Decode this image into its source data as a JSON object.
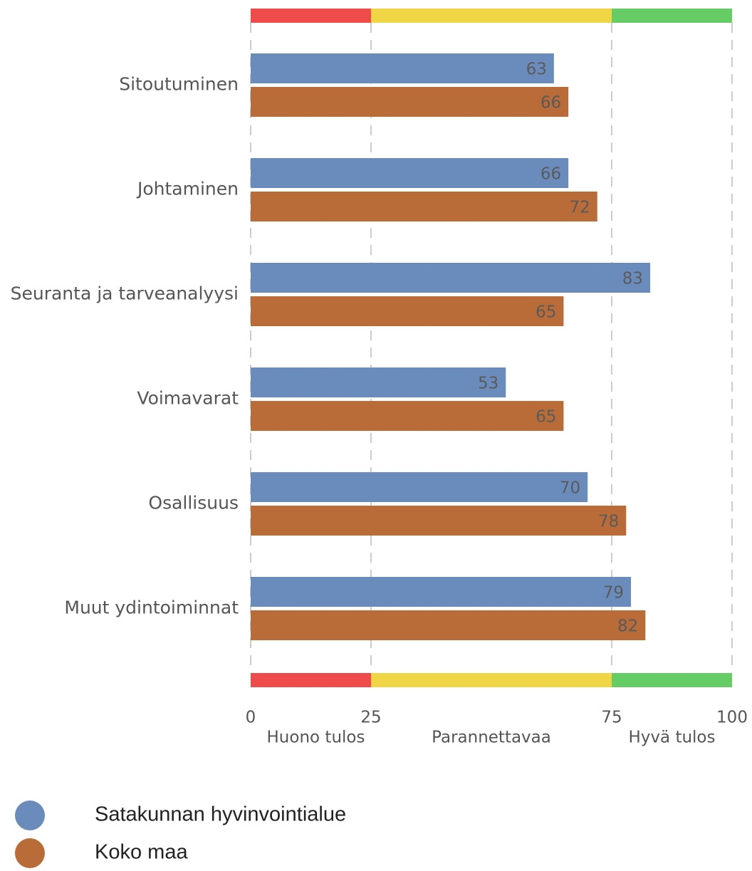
{
  "chart_data": {
    "type": "bar",
    "orientation": "horizontal",
    "categories": [
      "Sitoutuminen",
      "Johtaminen",
      "Seuranta ja tarveanalyysi",
      "Voimavarat",
      "Osallisuus",
      "Muut ydintoiminnat"
    ],
    "series": [
      {
        "name": "Satakunnan hyvinvointialue",
        "color": "#6a8cbd",
        "values": [
          63,
          66,
          83,
          53,
          70,
          79
        ]
      },
      {
        "name": "Koko maa",
        "color": "#b96c37",
        "values": [
          66,
          72,
          65,
          65,
          78,
          82
        ]
      }
    ],
    "xlim": [
      0,
      100
    ],
    "xticks": [
      0,
      25,
      75,
      100
    ],
    "zones": [
      {
        "label": "Huono tulos",
        "from": 0,
        "to": 25,
        "color": "#ef4b4b"
      },
      {
        "label": "Parannettavaa",
        "from": 25,
        "to": 75,
        "color": "#f0d544"
      },
      {
        "label": "Hyvä tulos",
        "from": 75,
        "to": 100,
        "color": "#66cc66"
      }
    ],
    "grid": true,
    "legend": "bottom-left"
  }
}
